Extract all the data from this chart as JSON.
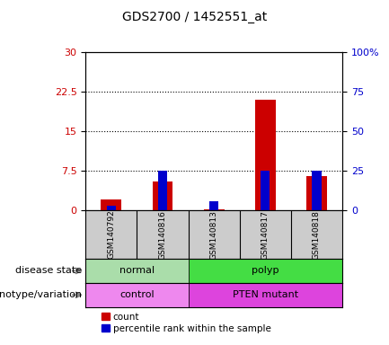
{
  "title": "GDS2700 / 1452551_at",
  "samples": [
    "GSM140792",
    "GSM140816",
    "GSM140813",
    "GSM140817",
    "GSM140818"
  ],
  "count_values": [
    2.0,
    5.5,
    0.2,
    21.0,
    6.5
  ],
  "percentile_values": [
    3.0,
    25.0,
    6.0,
    25.0,
    25.0
  ],
  "y_left_ticks": [
    0,
    7.5,
    15,
    22.5,
    30
  ],
  "y_left_labels": [
    "0",
    "7.5",
    "15",
    "22.5",
    "30"
  ],
  "y_right_ticks": [
    0,
    25,
    50,
    75,
    100
  ],
  "y_right_labels": [
    "0",
    "25",
    "50",
    "75",
    "100%"
  ],
  "ylim_left": [
    0,
    30
  ],
  "ylim_right": [
    0,
    100
  ],
  "count_color": "#cc0000",
  "percentile_color": "#0000cc",
  "disease_state_groups": [
    {
      "label": "normal",
      "span": [
        0,
        2
      ],
      "color": "#aaddaa"
    },
    {
      "label": "polyp",
      "span": [
        2,
        5
      ],
      "color": "#44dd44"
    }
  ],
  "genotype_groups": [
    {
      "label": "control",
      "span": [
        0,
        2
      ],
      "color": "#ee88ee"
    },
    {
      "label": "PTEN mutant",
      "span": [
        2,
        5
      ],
      "color": "#dd44dd"
    }
  ],
  "disease_label": "disease state",
  "genotype_label": "genotype/variation",
  "legend_count": "count",
  "legend_percentile": "percentile rank within the sample",
  "tick_label_color_left": "#cc0000",
  "tick_label_color_right": "#0000cc",
  "background_color": "#ffffff",
  "sample_box_color": "#cccccc",
  "arrow_color": "#888888"
}
